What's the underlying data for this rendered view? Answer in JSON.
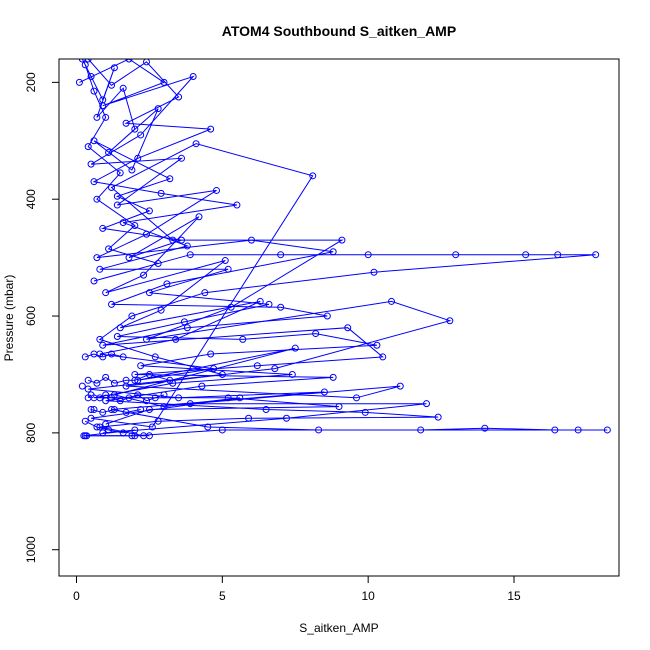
{
  "chart_data": {
    "type": "line",
    "title": "ATOM4 Southbound S_aitken_AMP",
    "xlabel": "S_aitken_AMP",
    "ylabel": "Pressure (mbar)",
    "xlim": [
      -0.6,
      18.6
    ],
    "ylim": [
      1045,
      160
    ],
    "y_axis_reversed": true,
    "x_ticks": [
      0,
      5,
      10,
      15
    ],
    "y_ticks": [
      200,
      400,
      600,
      800,
      1000
    ],
    "grid": false,
    "legend": "none",
    "color": "#0000ff",
    "marker": "open-circle",
    "series": [
      {
        "points": [
          [
            0.2,
            160
          ],
          [
            0.5,
            190
          ],
          [
            0.9,
            230
          ],
          [
            1.3,
            175
          ],
          [
            0.7,
            260
          ],
          [
            1.6,
            210
          ],
          [
            2.0,
            280
          ],
          [
            1.1,
            320
          ],
          [
            2.8,
            245
          ],
          [
            1.9,
            350
          ],
          [
            0.6,
            300
          ],
          [
            3.2,
            365
          ],
          [
            1.4,
            395
          ],
          [
            2.5,
            420
          ],
          [
            0.9,
            450
          ],
          [
            3.6,
            470
          ],
          [
            1.8,
            500
          ],
          [
            4.2,
            430
          ],
          [
            2.3,
            530
          ],
          [
            1.0,
            560
          ],
          [
            5.1,
            505
          ],
          [
            2.9,
            590
          ],
          [
            1.5,
            620
          ],
          [
            6.3,
            575
          ],
          [
            3.4,
            640
          ],
          [
            0.8,
            665
          ],
          [
            4.7,
            690
          ],
          [
            2.1,
            710
          ],
          [
            7.5,
            655
          ],
          [
            1.3,
            735
          ],
          [
            3.0,
            755
          ],
          [
            5.6,
            740
          ],
          [
            0.5,
            775
          ],
          [
            2.6,
            790
          ],
          [
            8.1,
            360
          ],
          [
            4.1,
            305
          ],
          [
            1.2,
            380
          ],
          [
            3.3,
            470
          ],
          [
            9.1,
            470
          ],
          [
            5.3,
            585
          ],
          [
            2.4,
            640
          ],
          [
            10.8,
            575
          ],
          [
            12.8,
            608
          ],
          [
            6.8,
            690
          ],
          [
            1.7,
            720
          ],
          [
            9.6,
            740
          ],
          [
            11.1,
            720
          ],
          [
            3.9,
            750
          ],
          [
            12.0,
            750
          ],
          [
            7.2,
            775
          ],
          [
            0.9,
            800
          ]
        ]
      },
      {
        "points": [
          [
            0.3,
            170
          ],
          [
            0.6,
            215
          ],
          [
            1.0,
            260
          ],
          [
            0.4,
            310
          ],
          [
            1.5,
            355
          ],
          [
            0.7,
            400
          ],
          [
            2.0,
            445
          ],
          [
            1.1,
            485
          ],
          [
            2.8,
            510
          ],
          [
            0.6,
            540
          ],
          [
            3.9,
            495
          ],
          [
            7.0,
            495
          ],
          [
            10.0,
            495
          ],
          [
            13.0,
            495
          ],
          [
            15.4,
            495
          ],
          [
            16.5,
            495
          ],
          [
            17.8,
            495
          ],
          [
            10.2,
            525
          ],
          [
            4.4,
            560
          ],
          [
            1.9,
            600
          ],
          [
            0.8,
            640
          ],
          [
            2.7,
            670
          ],
          [
            5.0,
            700
          ],
          [
            0.4,
            725
          ],
          [
            3.5,
            740
          ],
          [
            8.5,
            730
          ],
          [
            1.2,
            760
          ],
          [
            4.5,
            790
          ],
          [
            8.3,
            795
          ],
          [
            11.8,
            795
          ],
          [
            14.0,
            792
          ],
          [
            16.4,
            795
          ],
          [
            17.2,
            795
          ],
          [
            18.2,
            795
          ],
          [
            5.0,
            795
          ],
          [
            2.0,
            805
          ],
          [
            0.3,
            805
          ]
        ]
      },
      {
        "points": [
          [
            0.1,
            200
          ],
          [
            1.8,
            160
          ],
          [
            3.0,
            200
          ],
          [
            0.9,
            240
          ],
          [
            4.0,
            190
          ],
          [
            2.2,
            290
          ],
          [
            0.5,
            340
          ],
          [
            3.6,
            330
          ],
          [
            1.4,
            410
          ],
          [
            4.8,
            385
          ],
          [
            2.4,
            460
          ],
          [
            0.7,
            500
          ],
          [
            6.0,
            470
          ],
          [
            8.8,
            490
          ],
          [
            3.1,
            545
          ],
          [
            1.2,
            580
          ],
          [
            7.0,
            585
          ],
          [
            8.6,
            600
          ],
          [
            3.8,
            620
          ],
          [
            0.9,
            650
          ],
          [
            9.3,
            620
          ],
          [
            10.5,
            670
          ],
          [
            6.2,
            685
          ],
          [
            2.0,
            700
          ],
          [
            8.8,
            705
          ],
          [
            4.3,
            720
          ],
          [
            1.0,
            745
          ],
          [
            6.5,
            760
          ],
          [
            9.9,
            765
          ],
          [
            12.4,
            773
          ],
          [
            5.9,
            775
          ],
          [
            2.8,
            780
          ],
          [
            0.8,
            790
          ],
          [
            2.3,
            805
          ]
        ]
      },
      {
        "points": [
          [
            0.4,
            160
          ],
          [
            1.2,
            205
          ],
          [
            2.4,
            165
          ],
          [
            3.5,
            225
          ],
          [
            1.7,
            270
          ],
          [
            4.6,
            280
          ],
          [
            2.1,
            330
          ],
          [
            0.6,
            370
          ],
          [
            2.9,
            390
          ],
          [
            5.5,
            410
          ],
          [
            1.6,
            440
          ],
          [
            3.8,
            480
          ],
          [
            0.8,
            520
          ],
          [
            5.2,
            520
          ],
          [
            2.5,
            560
          ],
          [
            6.6,
            580
          ],
          [
            3.7,
            610
          ],
          [
            1.4,
            635
          ],
          [
            5.7,
            640
          ],
          [
            8.2,
            630
          ],
          [
            10.3,
            650
          ],
          [
            4.6,
            665
          ],
          [
            2.2,
            685
          ],
          [
            7.4,
            700
          ],
          [
            3.3,
            715
          ],
          [
            0.6,
            740
          ],
          [
            5.2,
            740
          ],
          [
            9.0,
            755
          ],
          [
            2.5,
            760
          ],
          [
            1.0,
            785
          ]
        ]
      }
    ],
    "dense_cluster": {
      "comment": "visually dense band of overlapping measurements near small S_aitken_AMP values",
      "points": [
        [
          0.2,
          720
        ],
        [
          0.4,
          740
        ],
        [
          0.5,
          735
        ],
        [
          0.6,
          760
        ],
        [
          0.8,
          740
        ],
        [
          1.0,
          735
        ],
        [
          1.2,
          740
        ],
        [
          1.5,
          745
        ],
        [
          1.8,
          740
        ],
        [
          2.1,
          735
        ],
        [
          2.4,
          745
        ],
        [
          2.7,
          740
        ],
        [
          3.0,
          735
        ],
        [
          0.3,
          670
        ],
        [
          0.6,
          665
        ],
        [
          0.9,
          670
        ],
        [
          1.2,
          665
        ],
        [
          1.6,
          670
        ],
        [
          0.4,
          710
        ],
        [
          0.7,
          715
        ],
        [
          1.0,
          705
        ],
        [
          1.3,
          715
        ],
        [
          1.7,
          710
        ],
        [
          2.0,
          710
        ],
        [
          2.5,
          700
        ],
        [
          3.2,
          710
        ],
        [
          0.5,
          760
        ],
        [
          0.9,
          765
        ],
        [
          1.3,
          760
        ],
        [
          1.7,
          765
        ],
        [
          2.2,
          760
        ],
        [
          0.3,
          780
        ],
        [
          0.7,
          790
        ],
        [
          1.1,
          795
        ],
        [
          1.6,
          800
        ],
        [
          2.0,
          795
        ],
        [
          0.25,
          805
        ],
        [
          0.35,
          805
        ],
        [
          1.9,
          805
        ],
        [
          2.5,
          805
        ]
      ]
    }
  }
}
